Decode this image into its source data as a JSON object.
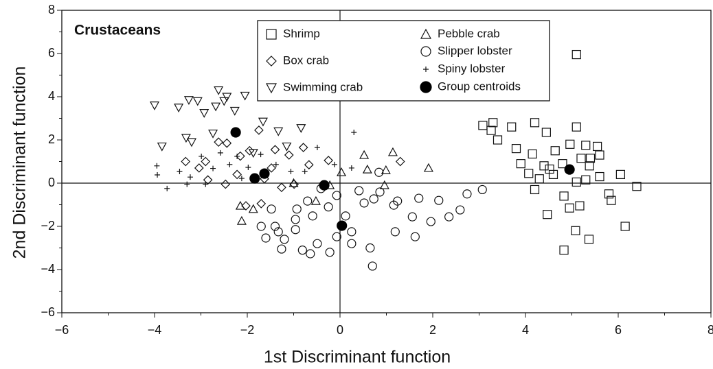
{
  "chart_data": {
    "type": "scatter",
    "annotation": "Crustaceans",
    "xlabel": "1st Discriminant function",
    "ylabel": "2nd Discriminant function",
    "xlim": [
      -6,
      8
    ],
    "ylim": [
      -6,
      8
    ],
    "xticks": [
      {
        "value": -6,
        "label": "−6"
      },
      {
        "value": -4,
        "label": "−4"
      },
      {
        "value": -2,
        "label": "−2"
      },
      0,
      2,
      4,
      6,
      8
    ],
    "yticks": [
      {
        "value": -6,
        "label": "−6"
      },
      {
        "value": -4,
        "label": "−4"
      },
      {
        "value": -2,
        "label": "−2"
      },
      0,
      2,
      4,
      6,
      8
    ],
    "xminorticks": [
      -5,
      -3,
      -1,
      1,
      3,
      5,
      7
    ],
    "yminorticks": [
      -5,
      -3,
      -1,
      1,
      3,
      5,
      7
    ],
    "reference_lines": [
      0,
      0
    ],
    "series": [
      {
        "name": "Shrimp",
        "marker": "square",
        "color": "#111",
        "fill": "none",
        "x": [
          5.1,
          3.08,
          3.3,
          3.26,
          3.4,
          3.7,
          4.2,
          4.45,
          5.1,
          3.8,
          3.9,
          4.15,
          4.64,
          4.96,
          5.3,
          5.55,
          5.6,
          5.2,
          4.8,
          4.4,
          4.07,
          4.6,
          5.3,
          5.6,
          6.05,
          6.4,
          5.8,
          5.85,
          4.2,
          4.83,
          4.95,
          5.17,
          4.47,
          6.15,
          5.08,
          5.37,
          4.83,
          4.3,
          4.52,
          5.38,
          5.4,
          5.1
        ],
        "y": [
          5.95,
          2.67,
          2.8,
          2.44,
          2.0,
          2.6,
          2.8,
          2.35,
          2.6,
          1.6,
          0.9,
          1.35,
          1.5,
          1.8,
          1.75,
          1.7,
          1.3,
          1.15,
          0.9,
          0.8,
          0.45,
          0.4,
          0.15,
          0.3,
          0.4,
          -0.15,
          -0.5,
          -0.8,
          -0.3,
          -0.6,
          -1.15,
          -1.05,
          -1.45,
          -2.0,
          -2.2,
          -2.6,
          -3.1,
          0.2,
          0.65,
          0.8,
          1.15,
          0.05
        ]
      },
      {
        "name": "Box crab",
        "marker": "diamond",
        "color": "#111",
        "fill": "none",
        "x": [
          -3.33,
          -3.04,
          -2.62,
          -2.44,
          -1.75,
          -2.15,
          -1.95,
          -1.4,
          -1.1,
          -0.79,
          -0.25,
          -0.67,
          1.3,
          -2.22,
          -2.85,
          -2.47,
          -2.03,
          -1.7,
          -1.26,
          -0.99,
          -2.9,
          -1.63,
          -1.48
        ],
        "y": [
          1.0,
          0.7,
          1.9,
          1.85,
          2.45,
          1.25,
          1.5,
          1.55,
          1.3,
          1.65,
          1.05,
          0.85,
          1.0,
          0.4,
          0.15,
          -0.05,
          -1.05,
          -0.95,
          -0.2,
          -0.05,
          1.0,
          0.2,
          0.7
        ]
      },
      {
        "name": "Swimming crab",
        "marker": "triangle-down",
        "color": "#111",
        "fill": "none",
        "x": [
          -4.0,
          -3.48,
          -3.26,
          -3.07,
          -2.93,
          -2.62,
          -2.5,
          -2.27,
          -2.05,
          -3.32,
          -3.2,
          -2.74,
          -3.84,
          -1.66,
          -1.33,
          -0.84,
          -1.87,
          -1.15,
          -2.68,
          -2.44
        ],
        "y": [
          3.6,
          3.5,
          3.85,
          3.8,
          3.25,
          4.3,
          3.8,
          3.35,
          4.05,
          2.1,
          1.9,
          2.3,
          1.7,
          2.85,
          2.4,
          2.55,
          1.4,
          1.7,
          3.55,
          4.0
        ]
      },
      {
        "name": "Pebble crab",
        "marker": "triangle-up",
        "color": "#111",
        "fill": "none",
        "x": [
          0.52,
          1.14,
          0.99,
          1.91,
          0.96,
          -2.12,
          -1.87,
          -1.0,
          -0.52,
          0.03,
          -2.15,
          -0.22,
          0.59
        ],
        "y": [
          1.3,
          1.43,
          0.6,
          0.7,
          -0.1,
          -1.75,
          -1.2,
          0.0,
          -0.83,
          0.5,
          -1.05,
          -0.1,
          0.63
        ]
      },
      {
        "name": "Slipper lobster",
        "marker": "circle",
        "color": "#111",
        "fill": "none",
        "x": [
          -1.4,
          -0.96,
          -1.33,
          -1.2,
          -1.26,
          -0.81,
          -0.64,
          -0.22,
          -0.49,
          -0.07,
          0.25,
          0.65,
          0.7,
          0.12,
          -0.25,
          -0.59,
          -0.96,
          -1.7,
          -1.6,
          0.52,
          0.86,
          1.16,
          1.19,
          1.62,
          1.56,
          1.7,
          1.96,
          2.13,
          2.35,
          2.59,
          2.74,
          3.07,
          0.84,
          1.24,
          0.73,
          0.41,
          -0.07,
          -0.41,
          -0.7,
          -0.93,
          -1.48,
          0.25
        ],
        "y": [
          -2.0,
          -2.15,
          -2.25,
          -2.6,
          -3.05,
          -3.1,
          -3.27,
          -3.2,
          -2.8,
          -2.48,
          -2.8,
          -3.0,
          -3.84,
          -1.52,
          -1.1,
          -1.52,
          -1.68,
          -2.0,
          -2.54,
          -0.92,
          -0.41,
          -1.02,
          -2.25,
          -2.48,
          -1.56,
          -0.7,
          -1.78,
          -0.8,
          -1.56,
          -1.24,
          -0.5,
          -0.3,
          0.5,
          -0.83,
          -0.73,
          -0.35,
          -0.57,
          -0.25,
          -0.83,
          -1.2,
          -1.2,
          -2.25
        ]
      },
      {
        "name": "Spiny lobster",
        "marker": "plus",
        "color": "#111",
        "fill": "none",
        "x": [
          -3.94,
          -3.73,
          -3.3,
          -3.46,
          -3.23,
          -2.9,
          -2.99,
          -2.74,
          -2.58,
          -2.38,
          -2.12,
          -1.98,
          -1.71,
          -1.38,
          -1.06,
          -0.76,
          -0.49,
          -0.12,
          0.25,
          0.3,
          -2.22,
          -3.95
        ],
        "y": [
          0.38,
          -0.25,
          -0.05,
          0.54,
          0.28,
          -0.05,
          1.24,
          0.68,
          1.4,
          0.86,
          0.22,
          0.73,
          1.33,
          0.86,
          0.54,
          0.54,
          1.65,
          0.86,
          0.7,
          2.35,
          1.24,
          0.8
        ]
      },
      {
        "name": "Group centroids",
        "marker": "circle",
        "color": "#000",
        "fill": "#000",
        "x": [
          -2.25,
          -1.84,
          -1.63,
          -0.34,
          0.04,
          4.95
        ],
        "y": [
          2.35,
          0.22,
          0.44,
          -0.1,
          -1.97,
          0.63
        ]
      }
    ]
  }
}
